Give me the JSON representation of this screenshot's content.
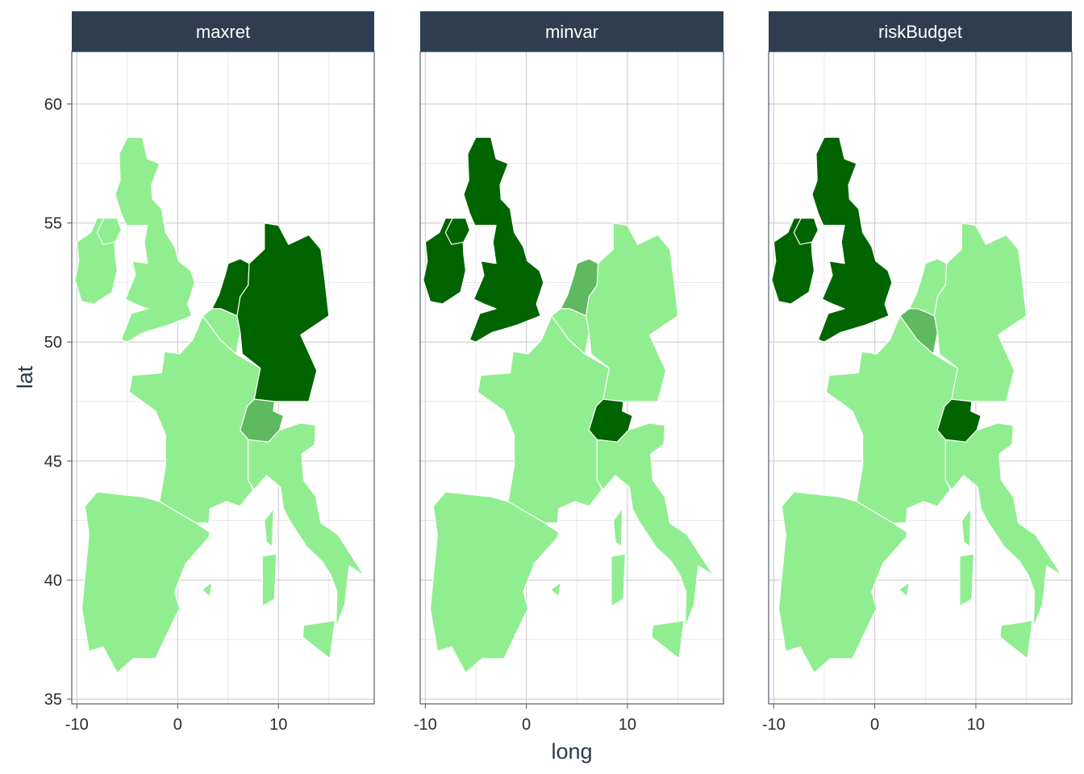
{
  "chart_data": {
    "type": "choropleth-map",
    "xlabel": "long",
    "ylabel": "lat",
    "xlim": [
      -10.5,
      19.5
    ],
    "ylim": [
      34.8,
      62.2
    ],
    "x_ticks": [
      -10,
      0,
      10
    ],
    "y_ticks": [
      35,
      40,
      45,
      50,
      55,
      60
    ],
    "grid": true,
    "colors": {
      "light": "#90ee90",
      "medium": "#5fb95f",
      "dark": "#006400",
      "strip": "#2e3e50",
      "border": "#ffffff"
    },
    "panels": [
      {
        "name": "maxret",
        "countries": {
          "uk": "light",
          "ireland": "light",
          "france": "light",
          "spain": "light",
          "italy": "light",
          "belgium": "light",
          "germany": "dark",
          "netherlands": "dark",
          "switzerland": "medium"
        }
      },
      {
        "name": "minvar",
        "countries": {
          "uk": "dark",
          "ireland": "dark",
          "france": "light",
          "spain": "light",
          "italy": "light",
          "belgium": "light",
          "germany": "light",
          "netherlands": "medium",
          "switzerland": "dark"
        }
      },
      {
        "name": "riskBudget",
        "countries": {
          "uk": "dark",
          "ireland": "dark",
          "france": "light",
          "spain": "light",
          "italy": "light",
          "belgium": "medium",
          "germany": "light",
          "netherlands": "light",
          "switzerland": "dark"
        }
      }
    ]
  }
}
